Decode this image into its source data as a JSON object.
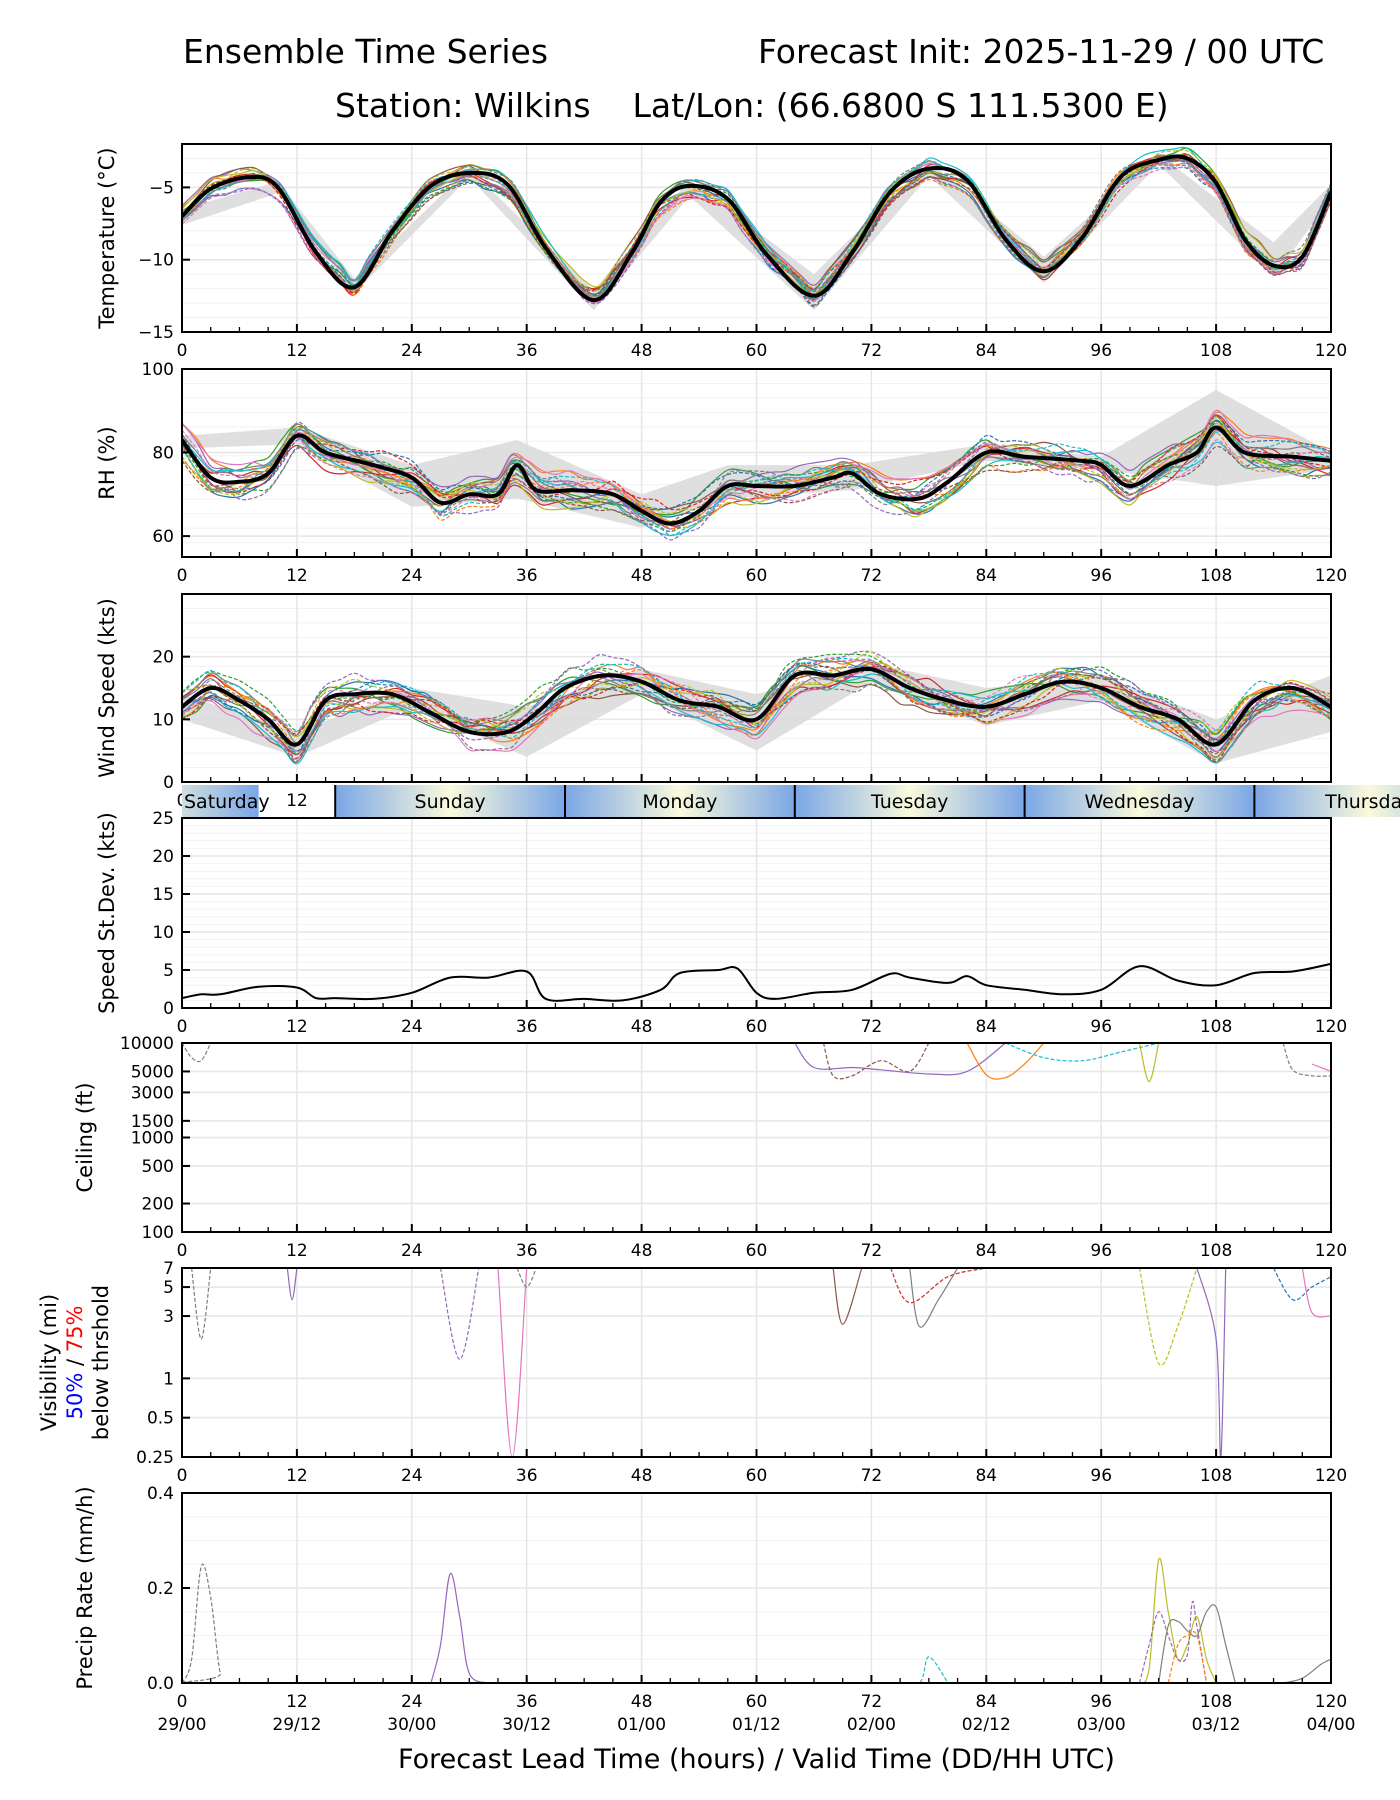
{
  "header": {
    "title_left": "Ensemble Time Series",
    "title_right": "Forecast Init: 2025-11-29 / 00 UTC",
    "subtitle": "Station: Wilkins    Lat/Lon: (66.6800 S 111.5300 E)"
  },
  "colors": {
    "mean": "#000000",
    "spread": "#d9d9d9",
    "grid": "#e6e6e6",
    "vis_50": "#0000ff",
    "vis_75": "#ff0000",
    "members": [
      "#1f77b4",
      "#ff7f0e",
      "#2ca02c",
      "#d62728",
      "#9467bd",
      "#8c564b",
      "#e377c2",
      "#7f7f7f",
      "#bcbd22",
      "#17becf"
    ]
  },
  "day_band": {
    "days": [
      "Saturday",
      "Sunday",
      "Monday",
      "Tuesday",
      "Wednesday",
      "Thursday"
    ],
    "day_start_hours": [
      -16,
      16,
      40,
      64,
      88,
      112
    ],
    "gradient_colors": [
      "#7aa6e6",
      "#fafadc",
      "#7aa6e6"
    ]
  },
  "xaxis": {
    "range": [
      0,
      120
    ],
    "ticks": [
      0,
      12,
      24,
      36,
      48,
      60,
      72,
      84,
      96,
      108,
      120
    ],
    "valid_labels": [
      "29/00",
      "29/12",
      "30/00",
      "30/12",
      "01/00",
      "01/12",
      "02/00",
      "02/12",
      "03/00",
      "03/12",
      "04/00"
    ],
    "xlabel": "Forecast Lead Time (hours) / Valid Time (DD/HH UTC)"
  },
  "chart_data": [
    {
      "type": "line",
      "id": "temperature",
      "ylabel": "Temperature (°C)",
      "ylim": [
        -15,
        -2
      ],
      "yticks": [
        -15,
        -10,
        -5
      ],
      "ytick_labels": [
        "−15",
        "−10",
        "−5"
      ],
      "grid": true,
      "series": [
        {
          "name": "ensemble-mean",
          "x": [
            0,
            3,
            7,
            10,
            14,
            18,
            22,
            26,
            30,
            34,
            38,
            43,
            47,
            50,
            53,
            57,
            61,
            66,
            70,
            74,
            78,
            82,
            86,
            90,
            94,
            98,
            102,
            105,
            108,
            111,
            114,
            117,
            120
          ],
          "values": [
            -7,
            -5.1,
            -4.3,
            -5,
            -9.5,
            -11.9,
            -8,
            -4.9,
            -4,
            -4.8,
            -9.2,
            -12.8,
            -9.5,
            -6,
            -4.9,
            -5.8,
            -9.6,
            -12.5,
            -9.5,
            -5.3,
            -3.7,
            -4.5,
            -8.6,
            -10.8,
            -8.5,
            -4.3,
            -3.1,
            -3,
            -4.7,
            -8.6,
            -10.4,
            -9.8,
            -5.3
          ]
        },
        {
          "name": "spread-upper",
          "x": [
            0,
            10,
            18,
            30,
            43,
            53,
            66,
            78,
            90,
            102,
            114,
            120
          ],
          "values": [
            -6.5,
            -4.6,
            -11.3,
            -3.7,
            -12.1,
            -4.5,
            -11,
            -3.2,
            -9.8,
            -2.7,
            -8.8,
            -4.8
          ]
        },
        {
          "name": "spread-lower",
          "x": [
            0,
            10,
            18,
            30,
            43,
            53,
            66,
            78,
            90,
            102,
            114,
            120
          ],
          "values": [
            -7.6,
            -5.4,
            -12.3,
            -4.3,
            -13.5,
            -5.6,
            -13.5,
            -4.2,
            -11.6,
            -3.4,
            -11.2,
            -5.8
          ]
        }
      ]
    },
    {
      "type": "line",
      "id": "rh",
      "ylabel": "RH (%)",
      "ylim": [
        55,
        100
      ],
      "yticks": [
        60,
        80,
        100
      ],
      "ytick_labels": [
        "60",
        "80",
        "100"
      ],
      "grid": true,
      "series": [
        {
          "name": "ensemble-mean",
          "x": [
            0,
            3,
            6,
            9,
            12,
            15,
            20,
            24,
            27,
            30,
            33,
            35,
            37,
            41,
            45,
            48,
            51,
            54,
            57,
            60,
            64,
            68,
            70,
            73,
            77,
            80,
            84,
            88,
            94,
            96,
            99,
            103,
            106,
            108,
            111,
            116,
            120
          ],
          "values": [
            83,
            74,
            73,
            75,
            84,
            80,
            77,
            74,
            68,
            70,
            70,
            77,
            71,
            71,
            70,
            66,
            63,
            66,
            72,
            72,
            72,
            74,
            75,
            70,
            69,
            73,
            80,
            79,
            78,
            77,
            72,
            77,
            80,
            86,
            80,
            79,
            78
          ]
        },
        {
          "name": "spread-upper",
          "x": [
            0,
            12,
            24,
            35,
            48,
            57,
            70,
            84,
            96,
            108,
            120
          ],
          "values": [
            84,
            86,
            77,
            83,
            70,
            77,
            77,
            82,
            79,
            95,
            80
          ]
        },
        {
          "name": "spread-lower",
          "x": [
            0,
            12,
            24,
            35,
            48,
            57,
            70,
            84,
            96,
            108,
            120
          ],
          "values": [
            81,
            82,
            67,
            69,
            62,
            69,
            71,
            78,
            76,
            72,
            76
          ]
        }
      ]
    },
    {
      "type": "line",
      "id": "wind-speed",
      "ylabel": "Wind Speed (kts)",
      "ylim": [
        0,
        30
      ],
      "yticks": [
        0,
        10,
        20
      ],
      "ytick_labels": [
        "0",
        "10",
        "20"
      ],
      "grid": true,
      "series": [
        {
          "name": "ensemble-mean",
          "x": [
            0,
            3,
            6,
            9,
            12,
            15,
            18,
            22,
            26,
            30,
            34,
            37,
            40,
            44,
            48,
            52,
            56,
            60,
            64,
            68,
            72,
            76,
            80,
            84,
            88,
            92,
            96,
            100,
            104,
            108,
            112,
            116,
            120
          ],
          "values": [
            12,
            15,
            13,
            10,
            6,
            13,
            14,
            14,
            11,
            8,
            8,
            11,
            15,
            17,
            16,
            13,
            12,
            10,
            17,
            17,
            18,
            15,
            13,
            12,
            14,
            16,
            15,
            12,
            10,
            6,
            13,
            15,
            12
          ]
        },
        {
          "name": "spread-upper",
          "x": [
            0,
            12,
            24,
            36,
            48,
            60,
            72,
            84,
            96,
            108,
            120
          ],
          "values": [
            14,
            8,
            15,
            12,
            18,
            14,
            19,
            15,
            17,
            10,
            17
          ]
        },
        {
          "name": "spread-lower",
          "x": [
            0,
            12,
            24,
            36,
            48,
            60,
            72,
            84,
            96,
            108,
            120
          ],
          "values": [
            10,
            4,
            12,
            4,
            14,
            5,
            16,
            9,
            13,
            3,
            8
          ]
        }
      ]
    },
    {
      "type": "line",
      "id": "speed-stdev",
      "ylabel": "Speed St.Dev. (kts)",
      "ylim": [
        0,
        25
      ],
      "yticks": [
        0,
        5,
        10,
        15,
        20,
        25
      ],
      "ytick_labels": [
        "0",
        "5",
        "10",
        "15",
        "20",
        "25"
      ],
      "grid": true,
      "series": [
        {
          "name": "stdev",
          "x": [
            0,
            2,
            4,
            8,
            12,
            14,
            16,
            20,
            24,
            28,
            32,
            36,
            38,
            42,
            46,
            50,
            52,
            56,
            58,
            60,
            62,
            66,
            70,
            74,
            76,
            80,
            82,
            84,
            88,
            92,
            96,
            100,
            104,
            108,
            112,
            116,
            120
          ],
          "values": [
            1.3,
            1.8,
            1.8,
            2.8,
            2.7,
            1.3,
            1.3,
            1.2,
            2,
            4,
            4,
            4.8,
            1.2,
            1.2,
            1,
            2.4,
            4.6,
            5,
            5.2,
            2,
            1.2,
            2,
            2.4,
            4.5,
            4,
            3.3,
            4.2,
            3,
            2.4,
            1.8,
            2.4,
            5.5,
            3.6,
            3,
            4.6,
            4.8,
            5.8
          ]
        }
      ]
    },
    {
      "type": "line",
      "id": "ceiling",
      "ylabel": "Ceiling (ft)",
      "yscale": "log",
      "ylim": [
        100,
        10000
      ],
      "yticks": [
        100,
        200,
        500,
        1000,
        1500,
        3000,
        5000,
        10000
      ],
      "ytick_labels": [
        "100",
        "200",
        "500",
        "1000",
        "1500",
        "3000",
        "5000",
        "10000"
      ],
      "grid": true,
      "series": [
        {
          "name": "member-gray",
          "x": [
            0,
            1,
            2,
            3
          ],
          "values": [
            10000,
            7000,
            6500,
            10000
          ]
        },
        {
          "name": "member-purple",
          "x": [
            64,
            66,
            70,
            73,
            78,
            82,
            86
          ],
          "values": [
            10000,
            5500,
            5500,
            5200,
            4700,
            5000,
            10000
          ]
        },
        {
          "name": "member-brown",
          "x": [
            67,
            68,
            70,
            73,
            76,
            78
          ],
          "values": [
            10000,
            4500,
            4500,
            6500,
            5000,
            10000
          ]
        },
        {
          "name": "member-orange",
          "x": [
            82,
            84,
            86,
            88,
            90
          ],
          "values": [
            10000,
            4600,
            4300,
            6000,
            10000
          ]
        },
        {
          "name": "member-cyan",
          "x": [
            86,
            90,
            94,
            98,
            102
          ],
          "values": [
            10000,
            7000,
            6500,
            8000,
            10000
          ]
        },
        {
          "name": "member-olive",
          "x": [
            100,
            101,
            102
          ],
          "values": [
            10000,
            3900,
            10000
          ]
        },
        {
          "name": "member-gray2",
          "x": [
            115,
            116,
            118,
            120
          ],
          "values": [
            10000,
            5200,
            4500,
            4500
          ]
        },
        {
          "name": "member-pink",
          "x": [
            118,
            120
          ],
          "values": [
            6000,
            5000
          ]
        }
      ]
    },
    {
      "type": "line",
      "id": "visibility",
      "ylabel": "Visibility (mi)",
      "ylabel_50": "50%",
      "ylabel_sep": " / ",
      "ylabel_75": "75%",
      "ylabel_2": "below thrshold",
      "yscale": "log",
      "ylim": [
        0.25,
        7
      ],
      "yticks": [
        0.25,
        0.5,
        1,
        3,
        5,
        7
      ],
      "ytick_labels": [
        "0.25",
        "0.5",
        "1",
        "3",
        "5",
        "7"
      ],
      "grid": true,
      "series": [
        {
          "name": "member-gray",
          "x": [
            1,
            2,
            3
          ],
          "values": [
            7,
            2,
            7
          ]
        },
        {
          "name": "member-purple",
          "x": [
            11,
            11.5,
            12
          ],
          "values": [
            7,
            4,
            7
          ]
        },
        {
          "name": "member-purple2",
          "x": [
            27,
            29,
            31
          ],
          "values": [
            7,
            1.4,
            7
          ]
        },
        {
          "name": "member-pink",
          "x": [
            33,
            34.5,
            36
          ],
          "values": [
            7,
            0.25,
            7
          ]
        },
        {
          "name": "member-gray3",
          "x": [
            35,
            36,
            37
          ],
          "values": [
            7,
            5,
            7
          ]
        },
        {
          "name": "member-brown",
          "x": [
            68,
            69,
            71
          ],
          "values": [
            7,
            2.6,
            7
          ]
        },
        {
          "name": "member-red",
          "x": [
            74,
            76,
            80,
            84
          ],
          "values": [
            7,
            3.8,
            6,
            7
          ]
        },
        {
          "name": "member-gray4",
          "x": [
            76,
            77,
            79,
            81
          ],
          "values": [
            7,
            2.5,
            4,
            7
          ]
        },
        {
          "name": "member-olive",
          "x": [
            100,
            102,
            104,
            106
          ],
          "values": [
            7,
            1.3,
            2.5,
            7
          ]
        },
        {
          "name": "member-purple3",
          "x": [
            106,
            108,
            108.5,
            109
          ],
          "values": [
            7,
            2,
            0.25,
            7
          ]
        },
        {
          "name": "member-blue",
          "x": [
            114,
            116,
            118,
            120
          ],
          "values": [
            7,
            4,
            5,
            6
          ]
        },
        {
          "name": "member-pink2",
          "x": [
            117,
            118,
            120
          ],
          "values": [
            7,
            3.2,
            3
          ]
        }
      ]
    },
    {
      "type": "line",
      "id": "precip",
      "ylabel": "Precip Rate (mm/h)",
      "ylim": [
        0,
        0.4
      ],
      "yticks": [
        0,
        0.2,
        0.4
      ],
      "ytick_labels": [
        "0.0",
        "0.2",
        "0.4"
      ],
      "grid": true,
      "series": [
        {
          "name": "member-gray",
          "x": [
            0,
            1,
            2,
            3,
            4,
            5,
            120
          ],
          "values": [
            0,
            0.05,
            0.245,
            0.18,
            0.02,
            0,
            0
          ]
        },
        {
          "name": "member-purple",
          "x": [
            26,
            27,
            28,
            29,
            30,
            32
          ],
          "values": [
            0,
            0.08,
            0.23,
            0.14,
            0.02,
            0
          ]
        },
        {
          "name": "member-cyan",
          "x": [
            74,
            77,
            78,
            80
          ],
          "values": [
            0,
            0,
            0.055,
            0
          ]
        },
        {
          "name": "member-olive",
          "x": [
            100,
            101,
            102,
            103,
            104,
            105,
            106,
            107,
            108
          ],
          "values": [
            0,
            0.03,
            0.26,
            0.15,
            0.05,
            0.08,
            0.14,
            0.05,
            0
          ]
        },
        {
          "name": "member-purple2",
          "x": [
            100,
            101,
            102,
            103,
            104,
            105,
            105.5,
            106,
            107
          ],
          "values": [
            0,
            0.08,
            0.15,
            0.1,
            0.05,
            0.06,
            0.17,
            0.12,
            0
          ]
        },
        {
          "name": "member-gray2",
          "x": [
            102,
            103,
            104,
            105,
            106,
            107,
            108,
            109,
            110
          ],
          "values": [
            0,
            0.12,
            0.13,
            0.11,
            0.1,
            0.15,
            0.16,
            0.08,
            0
          ]
        },
        {
          "name": "member-orange",
          "x": [
            103,
            104,
            105,
            106,
            107
          ],
          "values": [
            0,
            0.08,
            0.1,
            0.1,
            0
          ]
        },
        {
          "name": "member-gray3",
          "x": [
            115,
            117,
            119,
            120
          ],
          "values": [
            0,
            0.01,
            0.04,
            0.05
          ]
        }
      ]
    }
  ]
}
